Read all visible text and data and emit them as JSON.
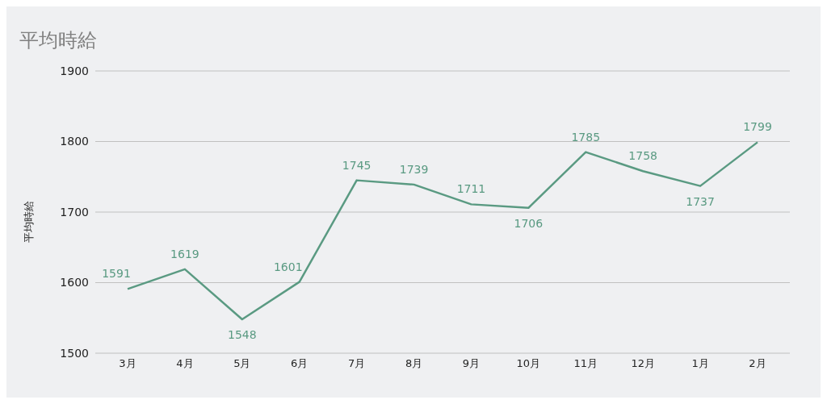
{
  "chart_data": {
    "type": "line",
    "title": "平均時給",
    "ylabel": "平均時給",
    "categories": [
      "3月",
      "4月",
      "5月",
      "6月",
      "7月",
      "8月",
      "9月",
      "10月",
      "11月",
      "12月",
      "1月",
      "2月"
    ],
    "series": [
      {
        "color": "#5a9a82",
        "values": [
          1591,
          1619,
          1548,
          1601,
          1745,
          1739,
          1711,
          1706,
          1785,
          1758,
          1737,
          1799
        ]
      }
    ],
    "ylim": [
      1500,
      1900
    ],
    "yticks": [
      1500,
      1600,
      1700,
      1800,
      1900
    ],
    "grid": "y",
    "data_labels": true,
    "marker": "none",
    "line_style": "solid"
  }
}
